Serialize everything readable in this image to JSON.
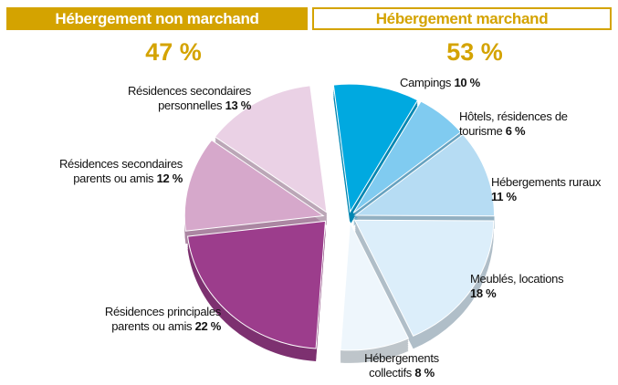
{
  "chart_data": {
    "type": "pie",
    "groups": [
      {
        "title": "Hébergement non marchand",
        "share": "47 %"
      },
      {
        "title": "Hébergement marchand",
        "share": "53 %"
      }
    ],
    "categories": [
      "Campings",
      "Hôtels, résidences de tourisme",
      "Hébergements ruraux",
      "Meublés, locations",
      "Hébergements collectifs",
      "Résidences principales parents ou amis",
      "Résidences secondaires parents ou amis",
      "Résidences secondaires personnelles"
    ],
    "values": [
      10,
      6,
      11,
      18,
      8,
      22,
      12,
      13
    ],
    "value_labels": [
      "10 %",
      "6 %",
      "11 %",
      "18 %",
      "8 %",
      "22 %",
      "12 %",
      "13 %"
    ],
    "colors": [
      "#00a9e0",
      "#80cbf0",
      "#b6dcf3",
      "#dceefa",
      "#eef6fc",
      "#9c3d8c",
      "#d6a8cb",
      "#ead1e5"
    ]
  }
}
